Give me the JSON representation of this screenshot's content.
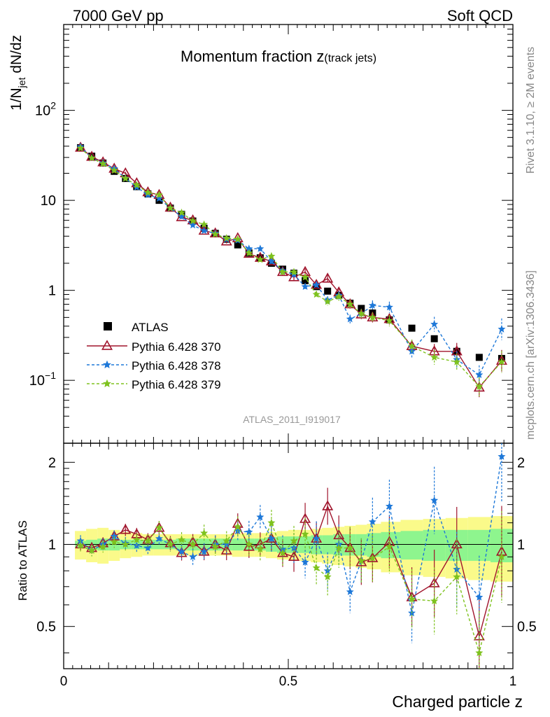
{
  "header": {
    "left": "7000 GeV pp",
    "right": "Soft QCD"
  },
  "title_main": "Momentum fraction z",
  "title_sub": "(track jets)",
  "side_texts": {
    "rivet": "Rivet 3.1.10, ≥ 2M events",
    "mcplots": "mcplots.cern.ch [arXiv:1306.3436]"
  },
  "analysis_label": "ATLAS_2011_I919017",
  "colors": {
    "atlas": "#000000",
    "p370": "#a0142c",
    "p378": "#1e78d8",
    "p379": "#7ec21e",
    "band_inner": "#8ef58e",
    "band_outer": "#fafa8a"
  },
  "chart_data": [
    {
      "type": "scatter",
      "title": "Momentum fraction z(track jets)",
      "ylabel_main": "1/N",
      "ylabel_sub": "jet",
      "ylabel_tail": " dN/dz",
      "yscale": "log",
      "ylim": [
        0.02,
        900
      ],
      "xlim": [
        0,
        1
      ],
      "yticks": [
        {
          "v": 0.1,
          "base": "10",
          "sup": "−1"
        },
        {
          "v": 1,
          "base": "1",
          "sup": ""
        },
        {
          "v": 10,
          "base": "10",
          "sup": ""
        },
        {
          "v": 100,
          "base": "10",
          "sup": "2"
        }
      ],
      "legend_position": "lower-left",
      "x": [
        0.0375,
        0.0625,
        0.0875,
        0.1125,
        0.1375,
        0.1625,
        0.1875,
        0.2125,
        0.2375,
        0.2625,
        0.2875,
        0.3125,
        0.3375,
        0.3625,
        0.3875,
        0.4125,
        0.4375,
        0.4625,
        0.4875,
        0.5125,
        0.5375,
        0.5625,
        0.5875,
        0.6125,
        0.6375,
        0.6625,
        0.6875,
        0.725,
        0.775,
        0.825,
        0.875,
        0.925,
        0.975
      ],
      "series": [
        {
          "name": "ATLAS",
          "key": "atlas",
          "marker": "square",
          "values": [
            38.5,
            31.0,
            26.0,
            21.0,
            17.5,
            14.2,
            11.8,
            10.0,
            8.2,
            7.0,
            5.9,
            4.9,
            4.3,
            3.7,
            3.2,
            2.6,
            2.3,
            2.0,
            1.72,
            1.55,
            1.28,
            1.1,
            0.98,
            0.88,
            0.72,
            0.63,
            0.56,
            0.47,
            0.38,
            0.29,
            0.21,
            0.18,
            0.175
          ]
        },
        {
          "name": "Pythia 6.428 370",
          "key": "p370",
          "marker": "triangle",
          "line": "solid",
          "values": [
            38.5,
            30.5,
            26.5,
            22.5,
            20.0,
            15.5,
            12.3,
            11.5,
            8.3,
            6.5,
            6.0,
            4.6,
            4.3,
            3.5,
            3.8,
            2.55,
            2.3,
            2.1,
            1.6,
            1.4,
            1.6,
            1.15,
            1.35,
            0.95,
            0.7,
            0.54,
            0.5,
            0.48,
            0.24,
            0.21,
            0.21,
            0.083,
            0.165
          ]
        },
        {
          "name": "Pythia 6.428 378",
          "key": "p378",
          "marker": "star",
          "line": "dashed",
          "values": [
            39.5,
            29.5,
            26.0,
            22.5,
            17.6,
            14.0,
            11.5,
            10.5,
            8.2,
            6.6,
            5.3,
            4.6,
            4.3,
            3.7,
            3.6,
            2.9,
            2.9,
            2.1,
            1.65,
            1.5,
            1.1,
            1.15,
            0.78,
            0.88,
            0.48,
            0.55,
            0.68,
            0.65,
            0.21,
            0.42,
            0.17,
            0.115,
            0.37
          ]
        },
        {
          "name": "Pythia 6.428 379",
          "key": "p379",
          "marker": "star",
          "line": "dashed",
          "values": [
            38.0,
            29.5,
            25.5,
            21.5,
            17.5,
            14.8,
            12.2,
            11.5,
            8.2,
            7.3,
            5.9,
            5.4,
            4.2,
            3.8,
            3.7,
            2.6,
            2.2,
            2.4,
            1.6,
            1.6,
            1.4,
            0.9,
            0.75,
            0.85,
            0.7,
            0.55,
            0.5,
            0.46,
            0.24,
            0.18,
            0.16,
            0.085,
            0.16
          ]
        }
      ]
    },
    {
      "type": "line",
      "xlabel": "Charged particle z",
      "ylabel": "Ratio to ATLAS",
      "ylim": [
        0.35,
        2.35
      ],
      "xlim": [
        0,
        1
      ],
      "yticks": [
        0.5,
        1,
        2
      ],
      "xticks": [
        {
          "v": 0,
          "label": "0"
        },
        {
          "v": 0.5,
          "label": "0.5"
        },
        {
          "v": 1,
          "label": "1"
        }
      ],
      "band_inner_halfwidth": [
        0.03,
        0.04,
        0.05,
        0.05,
        0.04,
        0.04,
        0.04,
        0.04,
        0.04,
        0.05,
        0.05,
        0.05,
        0.05,
        0.05,
        0.05,
        0.05,
        0.05,
        0.06,
        0.07,
        0.07,
        0.07,
        0.08,
        0.08,
        0.09,
        0.09,
        0.09,
        0.1,
        0.11,
        0.12,
        0.13,
        0.13,
        0.13,
        0.14
      ],
      "band_outer_halfwidth": [
        0.12,
        0.14,
        0.15,
        0.13,
        0.11,
        0.1,
        0.09,
        0.09,
        0.09,
        0.09,
        0.09,
        0.09,
        0.09,
        0.09,
        0.1,
        0.1,
        0.1,
        0.11,
        0.12,
        0.13,
        0.13,
        0.14,
        0.15,
        0.16,
        0.17,
        0.18,
        0.19,
        0.21,
        0.23,
        0.24,
        0.25,
        0.26,
        0.27
      ],
      "series": [
        {
          "name": "Pythia 6.428 370",
          "key": "p370",
          "values": [
            1.0,
            0.97,
            1.01,
            1.07,
            1.13,
            1.09,
            1.04,
            1.15,
            1.01,
            0.93,
            1.02,
            0.94,
            1.0,
            0.95,
            1.19,
            0.98,
            1.0,
            1.05,
            0.93,
            0.9,
            1.24,
            1.05,
            1.38,
            1.08,
            0.97,
            0.86,
            0.89,
            1.02,
            0.64,
            0.72,
            1.0,
            0.46,
            0.94
          ]
        },
        {
          "name": "Pythia 6.428 378",
          "key": "p378",
          "values": [
            1.03,
            0.95,
            1.0,
            1.07,
            1.01,
            0.99,
            0.97,
            1.05,
            1.0,
            0.94,
            0.9,
            0.94,
            1.0,
            1.0,
            1.12,
            1.11,
            1.26,
            1.05,
            0.96,
            0.97,
            0.86,
            1.05,
            0.8,
            1.0,
            0.67,
            0.87,
            1.21,
            1.38,
            0.56,
            1.45,
            0.81,
            0.64,
            2.1
          ]
        },
        {
          "name": "Pythia 6.428 379",
          "key": "p379",
          "values": [
            0.99,
            0.95,
            0.98,
            1.02,
            1.0,
            1.04,
            1.03,
            1.15,
            1.0,
            1.04,
            1.0,
            1.1,
            0.98,
            1.03,
            1.16,
            1.0,
            0.96,
            1.2,
            0.93,
            1.03,
            1.09,
            0.82,
            0.76,
            0.97,
            0.97,
            0.87,
            0.89,
            0.98,
            0.63,
            0.62,
            0.76,
            0.4,
            0.9
          ]
        }
      ]
    }
  ]
}
